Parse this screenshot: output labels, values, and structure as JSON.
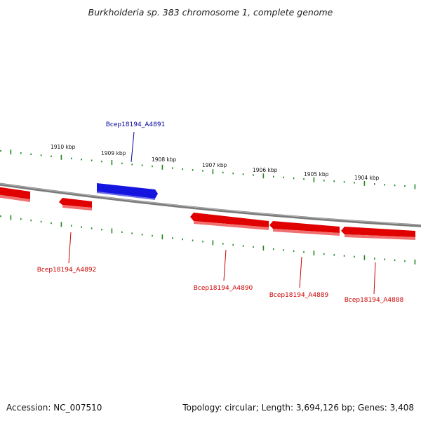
{
  "title": "Burkholderia sp. 383 chromosome 1, complete genome",
  "footer": {
    "accession": "Accession: NC_007510",
    "summary": "Topology: circular; Length: 3,694,126 bp; Genes: 3,408"
  },
  "colors": {
    "forward_gene": "#1515e0",
    "reverse_gene": "#e00000",
    "tick": "#1f8a1f",
    "backbone": "#7a7a7a",
    "forward_label": "#00009a",
    "reverse_label": "#cc0000"
  },
  "scale_labels": [
    "1910 kbp",
    "1909 kbp",
    "1908 kbp",
    "1907 kbp",
    "1906 kbp",
    "1905 kbp",
    "1904 kbp"
  ],
  "genes": [
    {
      "name": "Bcep18194_A4891",
      "strand": "forward"
    },
    {
      "name": "Bcep18194_A4892",
      "strand": "reverse"
    },
    {
      "name": "Bcep18194_A4890",
      "strand": "reverse"
    },
    {
      "name": "Bcep18194_A4889",
      "strand": "reverse"
    },
    {
      "name": "Bcep18194_A4888",
      "strand": "reverse"
    }
  ]
}
